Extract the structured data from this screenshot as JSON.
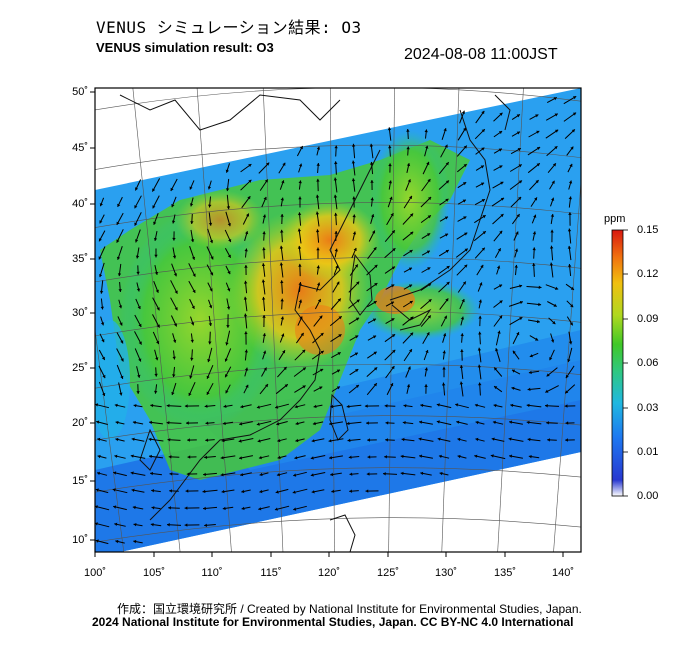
{
  "header": {
    "title_jp": "VENUS シミュレーション結果: O3",
    "title_en": "VENUS simulation result: O3",
    "timestamp": "2024-08-08 11:00JST"
  },
  "map": {
    "lat_ticks": [
      {
        "label": "50˚",
        "value": 50
      },
      {
        "label": "45˚",
        "value": 45
      },
      {
        "label": "40˚",
        "value": 40
      },
      {
        "label": "35˚",
        "value": 35
      },
      {
        "label": "30˚",
        "value": 30
      },
      {
        "label": "25˚",
        "value": 25
      },
      {
        "label": "20˚",
        "value": 20
      },
      {
        "label": "15˚",
        "value": 15
      },
      {
        "label": "10˚",
        "value": 10
      }
    ],
    "lon_ticks": [
      {
        "label": "100˚",
        "value": 100
      },
      {
        "label": "105˚",
        "value": 105
      },
      {
        "label": "110˚",
        "value": 110
      },
      {
        "label": "115˚",
        "value": 115
      },
      {
        "label": "120˚",
        "value": 120
      },
      {
        "label": "125˚",
        "value": 125
      },
      {
        "label": "130˚",
        "value": 130
      },
      {
        "label": "135˚",
        "value": 135
      },
      {
        "label": "140˚",
        "value": 140
      }
    ],
    "lat_range": [
      9,
      50
    ],
    "lon_range": [
      100,
      141
    ]
  },
  "colorbar": {
    "unit": "ppm",
    "ticks": [
      "0.15",
      "0.12",
      "0.09",
      "0.06",
      "0.03",
      "0.01",
      "0.00"
    ],
    "colors": [
      "#ffffff",
      "#1838d8",
      "#1e8cf0",
      "#22c8d8",
      "#3cc83c",
      "#a0d828",
      "#f0c814",
      "#f07814",
      "#d81e14"
    ]
  },
  "credits": {
    "line1": "作成：国立環境研究所 / Created by National Institute for Environmental Studies, Japan.",
    "line2": "2024 National Institute for Environmental Studies, Japan. CC BY-NC 4.0 International"
  }
}
